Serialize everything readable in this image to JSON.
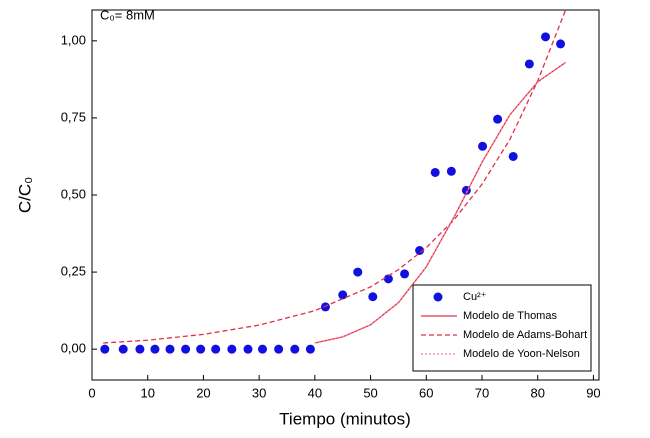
{
  "chart_data": {
    "type": "scatter",
    "annotation": "C₀= 8mM",
    "x_label": "Tiempo (minutos)",
    "y_label": "C/C₀",
    "xlim": [
      0,
      91
    ],
    "ylim": [
      -0.1,
      1.1
    ],
    "xticks": [
      0,
      10,
      20,
      30,
      40,
      50,
      60,
      70,
      80,
      90
    ],
    "yticks": [
      {
        "value": 0,
        "label": "0,00"
      },
      {
        "value": 0.25,
        "label": "0,25"
      },
      {
        "value": 0.5,
        "label": "0,50"
      },
      {
        "value": 0.75,
        "label": "0,75"
      },
      {
        "value": 1,
        "label": "1,00"
      }
    ],
    "legend": "lower right",
    "series": [
      {
        "name": "Cu²⁺",
        "kind": "points",
        "color": "#1010e0",
        "x": [
          2.3,
          5.6,
          8.6,
          11.3,
          14,
          16.8,
          19.5,
          22.2,
          25.1,
          28,
          30.6,
          33.5,
          36.4,
          39.2,
          41.9,
          45,
          47.7,
          50.4,
          53.2,
          56.1,
          58.8,
          61.6,
          64.5,
          67.2,
          70.1,
          72.8,
          75.6,
          78.5,
          81.4,
          84.1
        ],
        "values": [
          0,
          0,
          0,
          0,
          0,
          0,
          0,
          0,
          0,
          0,
          0,
          0,
          0,
          0,
          0.137,
          0.176,
          0.25,
          0.17,
          0.228,
          0.244,
          0.32,
          0.573,
          0.577,
          0.515,
          0.658,
          0.746,
          0.625,
          0.925,
          1.013,
          0.99
        ]
      },
      {
        "name": "Modelo de Thomas",
        "kind": "line",
        "color": "#e0304a",
        "x": [
          40,
          45,
          50,
          55,
          60,
          65,
          70,
          75,
          80,
          85
        ],
        "values": [
          0.02,
          0.04,
          0.079,
          0.151,
          0.267,
          0.429,
          0.606,
          0.76,
          0.867,
          0.93
        ]
      },
      {
        "name": "Modelo de Adams-Bohart",
        "kind": "dashed",
        "color": "#e0304a",
        "x": [
          2,
          10,
          20,
          30,
          40,
          50,
          55,
          60,
          65,
          70,
          75,
          80,
          85
        ],
        "values": [
          0.02,
          0.029,
          0.048,
          0.078,
          0.125,
          0.202,
          0.258,
          0.329,
          0.42,
          0.535,
          0.68,
          0.87,
          1.1
        ]
      },
      {
        "name": "Modelo de Yoon-Nelson",
        "kind": "dotted",
        "color": "#f08090",
        "x": [
          40,
          45,
          50,
          55,
          60,
          65,
          70,
          75,
          80,
          85
        ],
        "values": [
          0.02,
          0.04,
          0.079,
          0.151,
          0.267,
          0.429,
          0.606,
          0.76,
          0.867,
          0.93
        ]
      }
    ]
  }
}
